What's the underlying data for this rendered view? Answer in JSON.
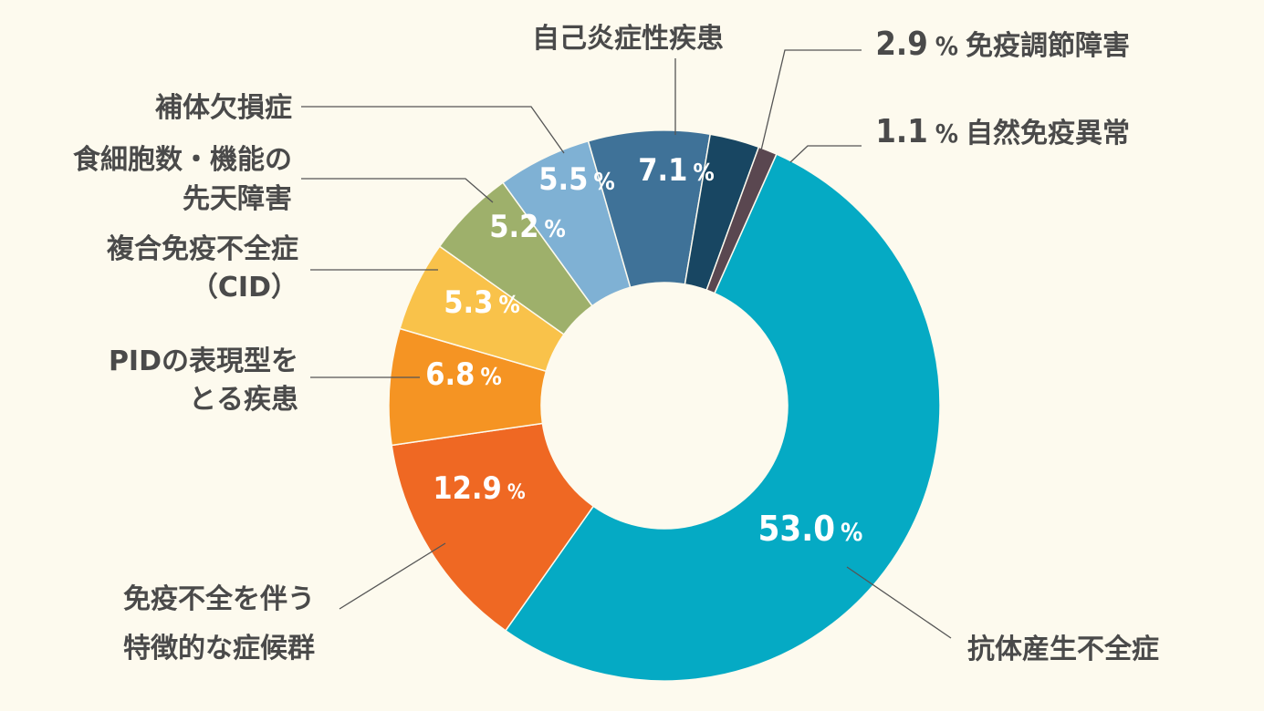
{
  "chart_data": {
    "type": "pie",
    "style": "donut",
    "title": "",
    "slices": [
      {
        "name": "抗体産生不全症",
        "value": 53.0,
        "label": "53.0",
        "unit": "%",
        "color": "#05aac4",
        "label_style": "inner"
      },
      {
        "name": "免疫不全を伴う特徴的な症候群",
        "lines": [
          "免疫不全を伴う",
          "特徴的な症候群"
        ],
        "value": 12.9,
        "label": "12.9",
        "unit": "%",
        "color": "#ef6823",
        "label_style": "inner"
      },
      {
        "name": "PIDの表現型をとる疾患",
        "lines": [
          "PIDの表現型を",
          "とる疾患"
        ],
        "value": 6.8,
        "label": "6.8",
        "unit": "%",
        "color": "#f59423",
        "label_style": "inner"
      },
      {
        "name": "複合免疫不全症（CID）",
        "lines": [
          "複合免疫不全症",
          "（CID）"
        ],
        "value": 5.3,
        "label": "5.3",
        "unit": "%",
        "color": "#f9c24a",
        "label_style": "inner"
      },
      {
        "name": "食細胞数・機能の先天障害",
        "lines": [
          "食細胞数・機能の",
          "先天障害"
        ],
        "value": 5.2,
        "label": "5.2",
        "unit": "%",
        "color": "#9eb06b",
        "label_style": "inner"
      },
      {
        "name": "補体欠損症",
        "lines": [
          "補体欠損症"
        ],
        "value": 5.5,
        "label": "5.5",
        "unit": "%",
        "color": "#7fb1d4",
        "label_style": "inner"
      },
      {
        "name": "自己炎症性疾患",
        "lines": [
          "自己炎症性疾患"
        ],
        "value": 7.1,
        "label": "7.1",
        "unit": "%",
        "color": "#3f7298",
        "label_style": "inner"
      },
      {
        "name": "免疫調節障害",
        "lines": [
          "免疫調節障害"
        ],
        "value": 2.9,
        "label": "2.9",
        "unit": "%",
        "color": "#184662",
        "label_style": "outer"
      },
      {
        "name": "自然免疫異常",
        "lines": [
          "自然免疫異常"
        ],
        "value": 1.1,
        "label": "1.1",
        "unit": "%",
        "color": "#5a4750",
        "label_style": "outer"
      }
    ]
  }
}
